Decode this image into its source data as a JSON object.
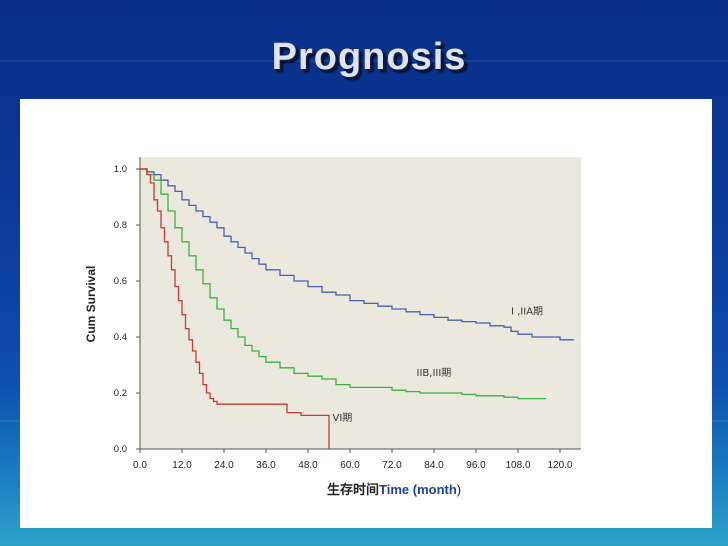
{
  "slide": {
    "title": "Prognosis"
  },
  "chart_data": {
    "type": "line",
    "title": "",
    "xlabel_cn": "生存时间",
    "xlabel_en": "Time (month",
    "xlabel_close": ")",
    "ylabel": "Cum Survival",
    "xlim": [
      0,
      125
    ],
    "ylim": [
      0,
      1.0
    ],
    "xticks": [
      "0.0",
      "12.0",
      "24.0",
      "36.0",
      "48.0",
      "60.0",
      "72.0",
      "84.0",
      "96.0",
      "108.0",
      "120.0"
    ],
    "yticks": [
      "0.0",
      "0.2",
      "0.4",
      "0.6",
      "0.8",
      "1.0"
    ],
    "grid": false,
    "colors": {
      "plot_bg": "#ebe9dd",
      "axis": "#555555",
      "xlabel_en": "#1f3f9a"
    },
    "series": [
      {
        "name": "I ,IIA期",
        "color": "#4a5fb0",
        "x": [
          0,
          2,
          4,
          6,
          8,
          10,
          12,
          14,
          16,
          18,
          20,
          22,
          24,
          26,
          28,
          30,
          32,
          34,
          36,
          40,
          44,
          48,
          52,
          56,
          60,
          64,
          68,
          72,
          76,
          80,
          84,
          88,
          92,
          96,
          100,
          104,
          106,
          108,
          112,
          116,
          120,
          124
        ],
        "y": [
          1.0,
          0.99,
          0.98,
          0.96,
          0.94,
          0.92,
          0.89,
          0.87,
          0.85,
          0.83,
          0.81,
          0.79,
          0.76,
          0.74,
          0.72,
          0.7,
          0.68,
          0.66,
          0.64,
          0.62,
          0.6,
          0.58,
          0.56,
          0.55,
          0.53,
          0.52,
          0.51,
          0.5,
          0.49,
          0.48,
          0.47,
          0.46,
          0.455,
          0.45,
          0.44,
          0.435,
          0.42,
          0.41,
          0.4,
          0.4,
          0.39,
          0.39
        ]
      },
      {
        "name": "IIB,III期",
        "color": "#3cb043",
        "x": [
          0,
          2,
          4,
          6,
          8,
          10,
          12,
          14,
          16,
          18,
          20,
          22,
          24,
          26,
          28,
          30,
          32,
          34,
          36,
          40,
          44,
          48,
          52,
          56,
          60,
          66,
          72,
          76,
          80,
          84,
          88,
          92,
          96,
          100,
          104,
          108,
          112,
          116
        ],
        "y": [
          1.0,
          0.98,
          0.96,
          0.91,
          0.85,
          0.79,
          0.74,
          0.69,
          0.64,
          0.59,
          0.54,
          0.5,
          0.46,
          0.43,
          0.4,
          0.37,
          0.35,
          0.33,
          0.31,
          0.29,
          0.27,
          0.26,
          0.25,
          0.23,
          0.22,
          0.22,
          0.21,
          0.205,
          0.2,
          0.2,
          0.2,
          0.195,
          0.19,
          0.19,
          0.185,
          0.18,
          0.18,
          0.18
        ]
      },
      {
        "name": "VI期",
        "color": "#c43a3a",
        "x": [
          0,
          2,
          3,
          4,
          5,
          6,
          7,
          8,
          9,
          10,
          11,
          12,
          13,
          14,
          15,
          16,
          17,
          18,
          19,
          20,
          21,
          22,
          24,
          28,
          32,
          36,
          40,
          42,
          46,
          50,
          54,
          54
        ],
        "y": [
          1.0,
          0.98,
          0.95,
          0.89,
          0.85,
          0.79,
          0.74,
          0.69,
          0.64,
          0.58,
          0.53,
          0.48,
          0.43,
          0.39,
          0.35,
          0.31,
          0.27,
          0.23,
          0.2,
          0.18,
          0.17,
          0.16,
          0.16,
          0.16,
          0.16,
          0.16,
          0.16,
          0.13,
          0.12,
          0.12,
          0.12,
          0.0
        ]
      }
    ]
  }
}
